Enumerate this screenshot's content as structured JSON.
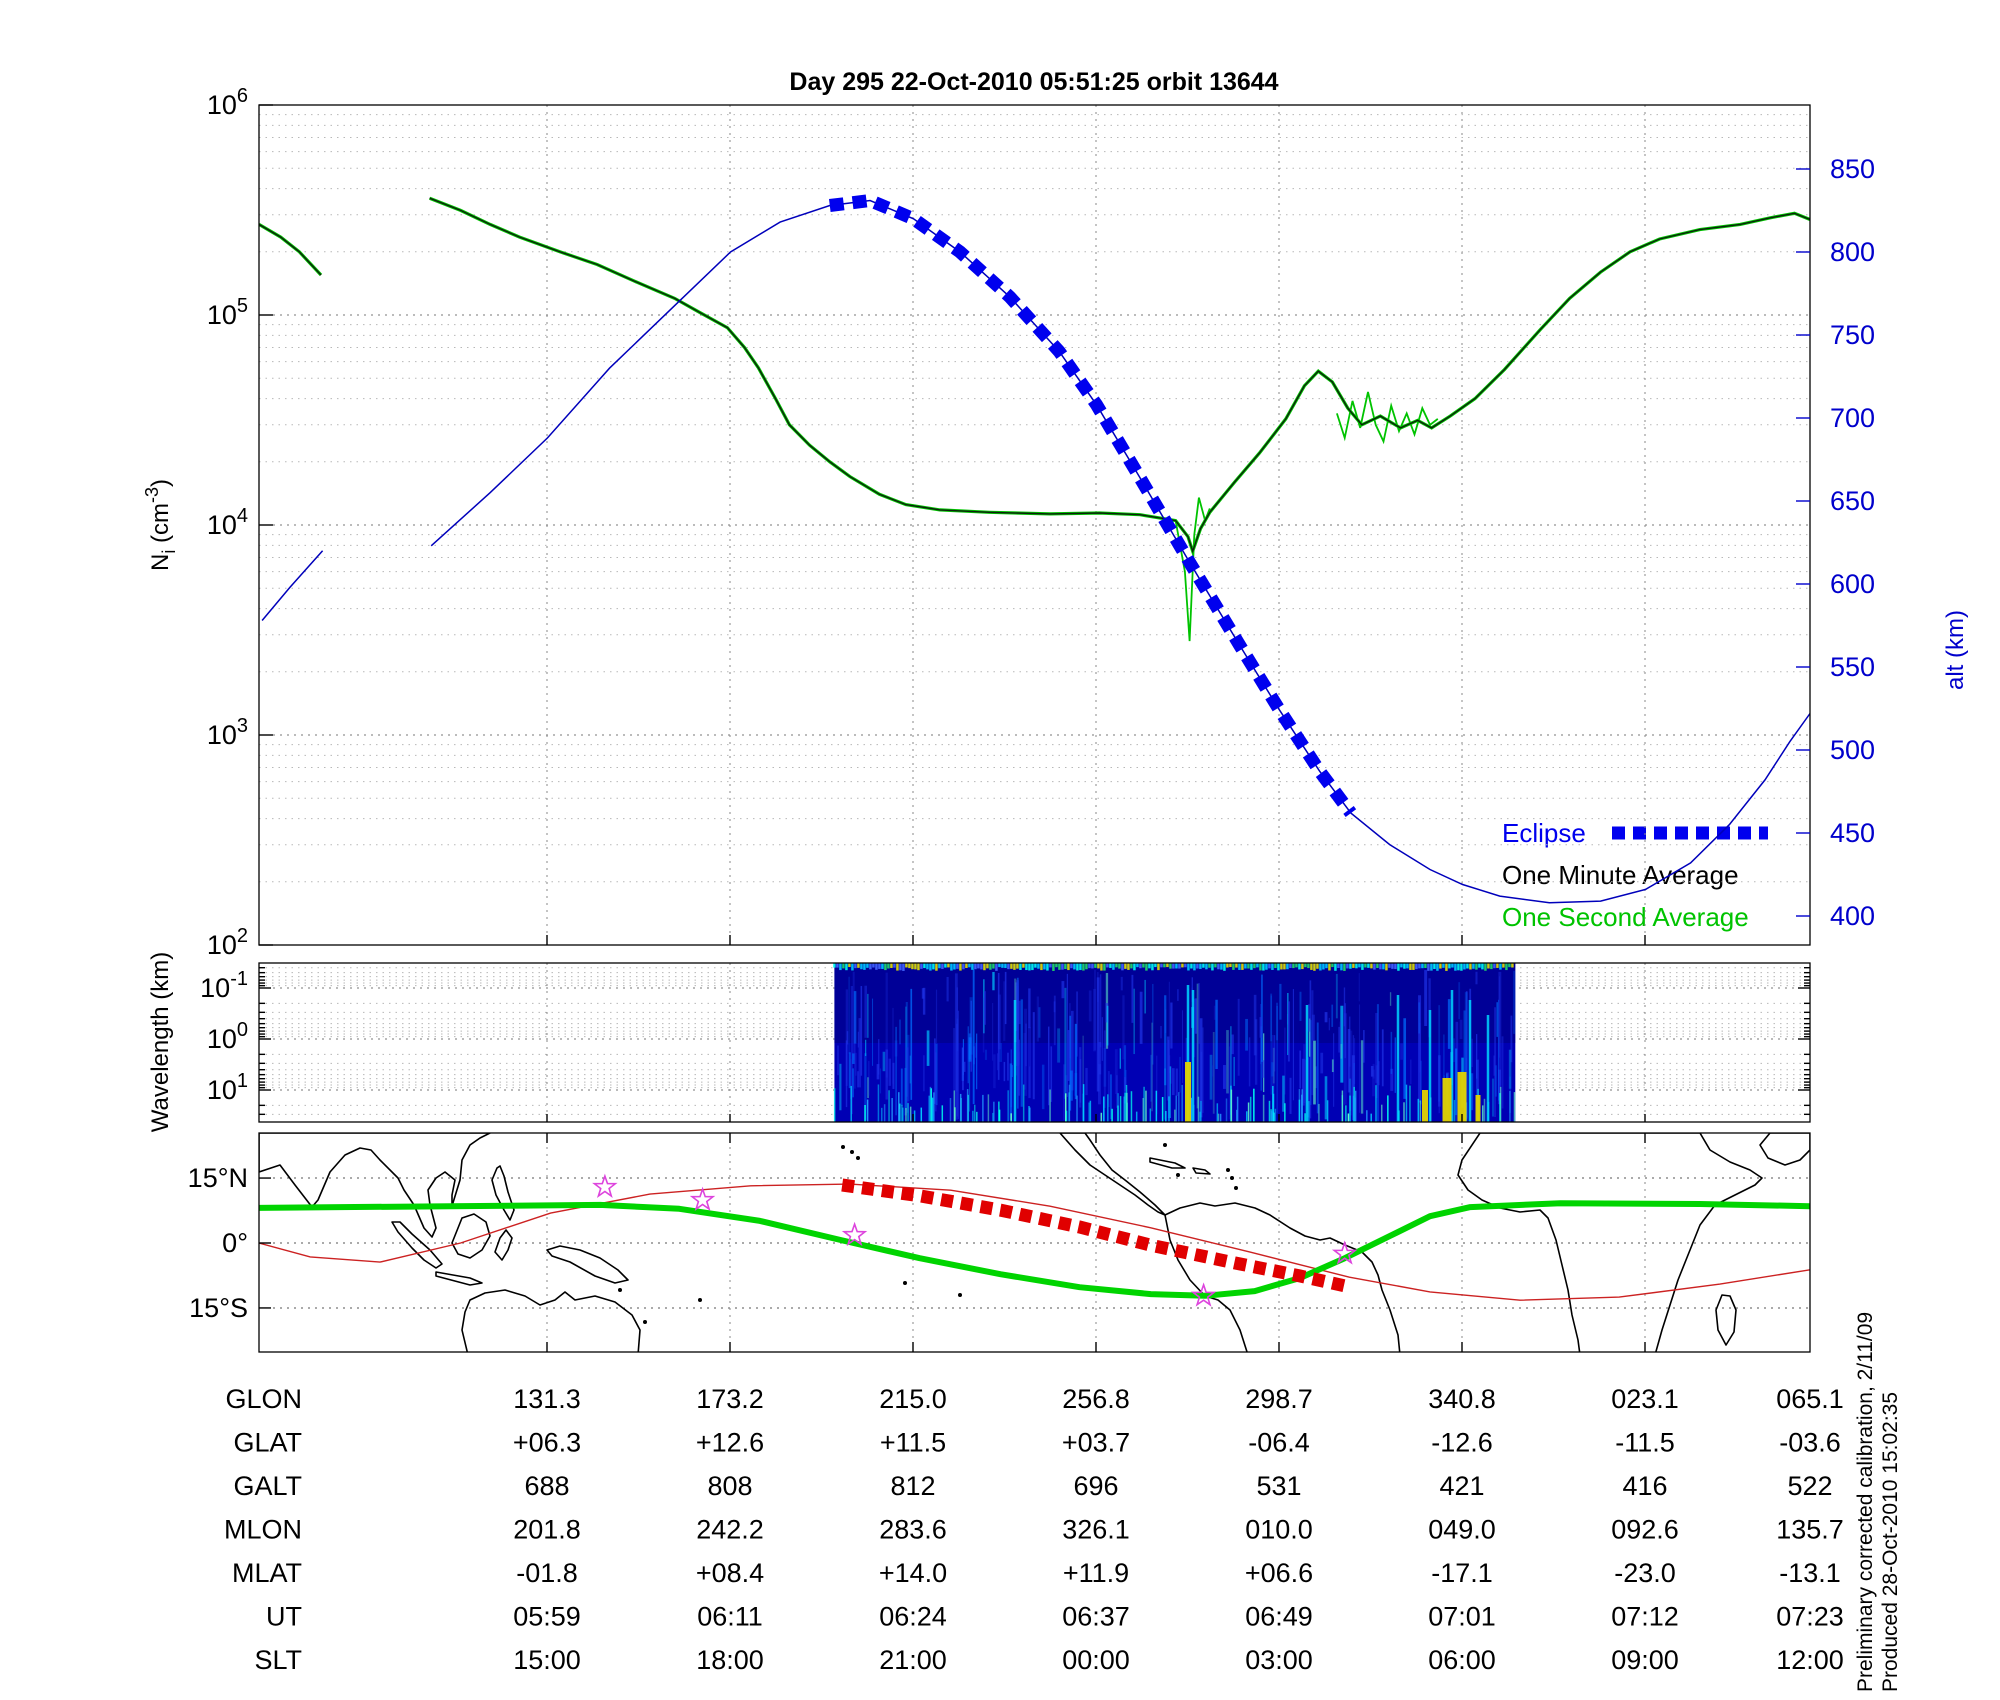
{
  "title": "Day 295  22-Oct-2010 05:51:25   orbit 13644",
  "notes": {
    "line1": "Preliminary corrected calibration, 2/11/09",
    "line2": "Produced 28-Oct-2010 15:02:35"
  },
  "colors": {
    "altitude_blue": "#0000bb",
    "eclipse_blue": "#0000ee",
    "axis_blue": "#0000cc",
    "one_minute": "#0d1f0d",
    "one_second": "#00c300",
    "map_track_green": "#00d400",
    "map_eclipse_red": "#e00000",
    "magnetic_equator_red": "#cc2222",
    "star_magenta": "#dd44dd",
    "spectro_base": "#0000b4"
  },
  "top_panel": {
    "ylabel": {
      "base": "N",
      "sub": "i",
      "unit": " (cm",
      "exp": "-3",
      "close": ")"
    },
    "alt_label": "alt (km)",
    "ni_ticks": [
      {
        "b": "10",
        "s": "6",
        "logv": 6
      },
      {
        "b": "10",
        "s": "5",
        "logv": 5
      },
      {
        "b": "10",
        "s": "4",
        "logv": 4
      },
      {
        "b": "10",
        "s": "3",
        "logv": 3
      },
      {
        "b": "10",
        "s": "2",
        "logv": 2
      }
    ],
    "alt_ticks": [
      850,
      800,
      750,
      700,
      650,
      600,
      550,
      500,
      450,
      400
    ],
    "legend": {
      "eclipse": "Eclipse",
      "one_minute": "One Minute Average",
      "one_second": "One Second Average"
    }
  },
  "mid_panel": {
    "ylabel": "Wavelength (km)",
    "ticks": [
      {
        "b": "10",
        "s": "-1",
        "logv": -1
      },
      {
        "b": "10",
        "s": "0",
        "logv": 0
      },
      {
        "b": "10",
        "s": "1",
        "logv": 1
      }
    ]
  },
  "map_panel": {
    "lat_ticks": [
      {
        "label": "15°N",
        "lat": 15
      },
      {
        "label": "0°",
        "lat": 0
      },
      {
        "label": "15°S",
        "lat": -15
      }
    ]
  },
  "table": {
    "rows": [
      {
        "label": "GLON",
        "values": [
          "131.3",
          "173.2",
          "215.0",
          "256.8",
          "298.7",
          "340.8",
          "023.1",
          "065.1"
        ]
      },
      {
        "label": "GLAT",
        "values": [
          "+06.3",
          "+12.6",
          "+11.5",
          "+03.7",
          "-06.4",
          "-12.6",
          "-11.5",
          "-03.6"
        ]
      },
      {
        "label": "GALT",
        "values": [
          "688",
          "808",
          "812",
          "696",
          "531",
          "421",
          "416",
          "522"
        ]
      },
      {
        "label": "MLON",
        "values": [
          "201.8",
          "242.2",
          "283.6",
          "326.1",
          "010.0",
          "049.0",
          "092.6",
          "135.7"
        ]
      },
      {
        "label": "MLAT",
        "values": [
          "-01.8",
          "+08.4",
          "+14.0",
          "+11.9",
          "+06.6",
          "-17.1",
          "-23.0",
          "-13.1"
        ]
      },
      {
        "label": "UT",
        "values": [
          "05:59",
          "06:11",
          "06:24",
          "06:37",
          "06:49",
          "07:01",
          "07:12",
          "07:23"
        ]
      },
      {
        "label": "SLT",
        "values": [
          "15:00",
          "18:00",
          "21:00",
          "00:00",
          "03:00",
          "06:00",
          "09:00",
          "12:00"
        ]
      }
    ]
  },
  "chart_data": {
    "x_axis_note": "shared x axis = time over one orbit, 05:51:25 UT to ~07:26 UT (no tick labels shown); x stored as fraction 0-1 of panel width; 8 vertical gridlines align with the 8 ephemeris-table columns",
    "panels": [
      {
        "id": "density_altitude",
        "type": "line",
        "left_y": {
          "label": "Ni (cm^-3)",
          "scale": "log",
          "range": [
            100,
            1000000
          ]
        },
        "right_y": {
          "label": "alt (km)",
          "ticks": [
            850,
            800,
            750,
            700,
            650,
            600,
            550,
            500,
            450,
            400
          ]
        },
        "series": [
          {
            "name": "one_minute_average",
            "points": [
              [
                0.0,
                270000
              ],
              [
                0.014,
                235000
              ],
              [
                0.026,
                200000
              ],
              [
                0.04,
                155000
              ],
              null,
              [
                0.11,
                360000
              ],
              [
                0.13,
                315000
              ],
              [
                0.149,
                270000
              ],
              [
                0.168,
                235000
              ],
              [
                0.194,
                200000
              ],
              [
                0.218,
                174000
              ],
              [
                0.242,
                145000
              ],
              [
                0.268,
                120000
              ],
              [
                0.284,
                103000
              ],
              [
                0.302,
                87000
              ],
              [
                0.313,
                70000
              ],
              [
                0.322,
                56000
              ],
              [
                0.333,
                40000
              ],
              [
                0.342,
                30000
              ],
              [
                0.355,
                24000
              ],
              [
                0.368,
                20000
              ],
              [
                0.381,
                17000
              ],
              [
                0.4,
                14000
              ],
              [
                0.417,
                12500
              ],
              [
                0.439,
                11800
              ],
              [
                0.471,
                11500
              ],
              [
                0.51,
                11300
              ],
              [
                0.542,
                11400
              ],
              [
                0.568,
                11200
              ],
              [
                0.591,
                10500
              ],
              [
                0.599,
                8800
              ],
              [
                0.602,
                7500
              ],
              [
                0.607,
                9600
              ],
              [
                0.613,
                11500
              ],
              [
                0.629,
                16000
              ],
              [
                0.645,
                22000
              ],
              [
                0.662,
                32000
              ],
              [
                0.674,
                46000
              ],
              [
                0.683,
                54000
              ],
              [
                0.692,
                48000
              ],
              [
                0.702,
                36000
              ],
              [
                0.711,
                30000
              ],
              [
                0.723,
                33000
              ],
              [
                0.736,
                29000
              ],
              [
                0.747,
                31500
              ],
              [
                0.756,
                29000
              ],
              [
                0.768,
                33000
              ],
              [
                0.784,
                40000
              ],
              [
                0.803,
                55000
              ],
              [
                0.826,
                85000
              ],
              [
                0.845,
                120000
              ],
              [
                0.865,
                160000
              ],
              [
                0.884,
                200000
              ],
              [
                0.903,
                230000
              ],
              [
                0.929,
                255000
              ],
              [
                0.955,
                270000
              ],
              [
                0.974,
                290000
              ],
              [
                0.99,
                305000
              ],
              [
                1.0,
                285000
              ]
            ]
          },
          {
            "name": "one_second_average",
            "follows": "one_minute_average",
            "extra_segments": [
              [
                [
                  0.591,
                  10500
                ],
                [
                  0.597,
                  6000
                ],
                [
                  0.6,
                  2800
                ],
                [
                  0.603,
                  9000
                ],
                [
                  0.606,
                  13500
                ],
                [
                  0.61,
                  10500
                ],
                [
                  0.613,
                  12000
                ]
              ],
              [
                [
                  0.695,
                  34000
                ],
                [
                  0.7,
                  26000
                ],
                [
                  0.705,
                  39000
                ],
                [
                  0.71,
                  29000
                ],
                [
                  0.715,
                  43000
                ],
                [
                  0.72,
                  30000
                ],
                [
                  0.725,
                  25000
                ],
                [
                  0.73,
                  37000
                ],
                [
                  0.735,
                  28000
                ],
                [
                  0.74,
                  34000
                ],
                [
                  0.745,
                  27000
                ],
                [
                  0.75,
                  36000
                ],
                [
                  0.755,
                  30000
                ],
                [
                  0.76,
                  32000
                ]
              ]
            ]
          },
          {
            "name": "altitude_km",
            "segments": [
              [
                [
                  0.002,
                  578
                ],
                [
                  0.02,
                  598
                ],
                [
                  0.041,
                  620
                ]
              ],
              [
                [
                  0.111,
                  623
                ],
                [
                  0.149,
                  655
                ],
                [
                  0.186,
                  688
                ],
                [
                  0.226,
                  730
                ],
                [
                  0.265,
                  765
                ],
                [
                  0.304,
                  800
                ],
                [
                  0.336,
                  818
                ],
                [
                  0.368,
                  828
                ],
                [
                  0.394,
                  831
                ],
                [
                  0.422,
                  820
                ],
                [
                  0.452,
                  800
                ],
                [
                  0.484,
                  773
                ],
                [
                  0.516,
                  740
                ],
                [
                  0.54,
                  708
                ],
                [
                  0.568,
                  664
                ],
                [
                  0.6,
                  613
                ],
                [
                  0.633,
                  562
                ],
                [
                  0.658,
                  524
                ],
                [
                  0.684,
                  487
                ],
                [
                  0.704,
                  462
                ],
                [
                  0.729,
                  443
                ],
                [
                  0.755,
                  428
                ],
                [
                  0.776,
                  419
                ],
                [
                  0.8,
                  412
                ],
                [
                  0.832,
                  408
                ],
                [
                  0.865,
                  409
                ],
                [
                  0.894,
                  416
                ],
                [
                  0.923,
                  432
                ],
                [
                  0.948,
                  455
                ],
                [
                  0.971,
                  482
                ],
                [
                  0.987,
                  505
                ],
                [
                  1.0,
                  522
                ]
              ]
            ]
          },
          {
            "name": "eclipse_overlay",
            "style": "thick blue dashed squares along altitude curve",
            "f_range": [
              0.377,
              0.704
            ]
          }
        ]
      },
      {
        "id": "spectrogram",
        "type": "heatmap",
        "ylabel": "Wavelength (km)",
        "y_scale": "log, 10^-1 (top) to 10^1 (bottom)",
        "active_f_range": [
          0.371,
          0.81
        ],
        "description": "deep-blue spectrogram block during eclipse pass; cyan vertical streaks throughout, bright cyan/yellow activity near long-wavelength bottom edge around f=0.60 and f=0.74-0.80"
      },
      {
        "id": "ground_track_map",
        "type": "map",
        "lat_range": [
          -26,
          26
        ],
        "series": [
          {
            "name": "ground_track",
            "style": "thick green",
            "points_f_lat": [
              [
                0.0,
                8.1
              ],
              [
                0.123,
                8.5
              ],
              [
                0.22,
                8.8
              ],
              [
                0.271,
                7.9
              ],
              [
                0.323,
                5.1
              ],
              [
                0.375,
                0.7
              ],
              [
                0.426,
                -3.5
              ],
              [
                0.478,
                -7.2
              ],
              [
                0.529,
                -10.2
              ],
              [
                0.575,
                -11.8
              ],
              [
                0.61,
                -12.2
              ],
              [
                0.642,
                -11.1
              ],
              [
                0.671,
                -8.1
              ],
              [
                0.7,
                -3.5
              ],
              [
                0.729,
                1.6
              ],
              [
                0.755,
                6.2
              ],
              [
                0.781,
                8.3
              ],
              [
                0.839,
                9.2
              ],
              [
                0.929,
                9.0
              ],
              [
                1.0,
                8.5
              ]
            ]
          },
          {
            "name": "eclipse_ground_track",
            "style": "thick red dashed squares",
            "points_f_lat": [
              [
                0.376,
                13.4
              ],
              [
                0.426,
                10.9
              ],
              [
                0.478,
                7.6
              ],
              [
                0.529,
                3.7
              ],
              [
                0.575,
                -0.5
              ],
              [
                0.629,
                -4.6
              ],
              [
                0.671,
                -7.6
              ],
              [
                0.704,
                -10.2
              ]
            ]
          },
          {
            "name": "magnetic_equator",
            "style": "thin red",
            "points_f_lat": [
              [
                0.0,
                0.0
              ],
              [
                0.033,
                -3.2
              ],
              [
                0.078,
                -4.4
              ],
              [
                0.13,
                0.0
              ],
              [
                0.188,
                6.9
              ],
              [
                0.252,
                11.3
              ],
              [
                0.317,
                13.2
              ],
              [
                0.381,
                13.6
              ],
              [
                0.446,
                12.2
              ],
              [
                0.51,
                8.5
              ],
              [
                0.575,
                3.5
              ],
              [
                0.639,
                -2.1
              ],
              [
                0.703,
                -7.9
              ],
              [
                0.755,
                -11.3
              ],
              [
                0.813,
                -13.2
              ],
              [
                0.877,
                -12.5
              ],
              [
                0.942,
                -9.5
              ],
              [
                1.0,
                -6.2
              ]
            ]
          },
          {
            "name": "stars",
            "style": "magenta star markers",
            "points_f_lat": [
              [
                0.223,
                12.9
              ],
              [
                0.286,
                9.9
              ],
              [
                0.384,
                1.8
              ],
              [
                0.609,
                -12.2
              ],
              [
                0.7,
                -2.5
              ]
            ]
          }
        ]
      }
    ]
  }
}
